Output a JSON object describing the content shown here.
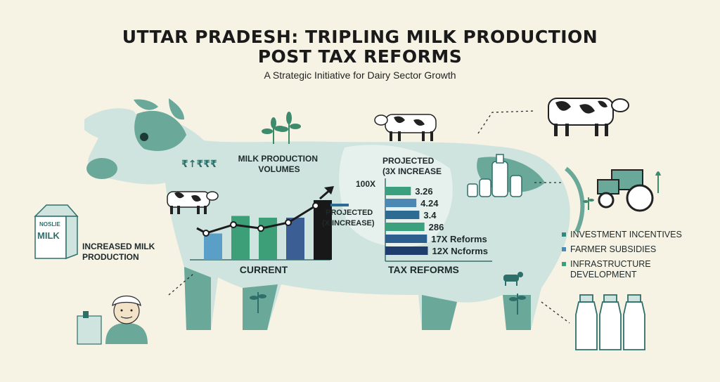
{
  "header": {
    "title_line1": "UTTAR PRADESH: TRIPLING MILK PRODUCTION",
    "title_line2": "POST TAX REFORMS",
    "subtitle": "A Strategic Initiative for Dairy Sector Growth"
  },
  "labels": {
    "increased_milk": "INCREASED MILK PRODUCTION",
    "carton_brand": "NOSLIE",
    "carton_product": "MILK",
    "icon_numbers": "₹↑₹₹₹",
    "projected_side": "PROJECTED (X INCREASE)",
    "hundred_x": "100X"
  },
  "legend": [
    {
      "label": "INVESTMENT INCENTIVES",
      "color": "#2f8a7c"
    },
    {
      "label": "FARMER SUBSIDIES",
      "color": "#4b88b4"
    },
    {
      "label": "INFRASTRUCTURE DEVELOPMENT",
      "color": "#3aa07e"
    }
  ],
  "colors": {
    "cow_body": "#cfe4de",
    "cow_spot": "#6aa89a",
    "teal_dark": "#2e6f6a",
    "green": "#3a9b76",
    "blue": "#4f8fbc",
    "navy": "#2d4f82",
    "black": "#181818"
  },
  "chart_data": [
    {
      "type": "bar",
      "title": "MILK PRODUCTION VOLUMES",
      "xlabel": "CURRENT",
      "values": [
        3,
        5,
        4.8,
        4.8,
        6.8
      ],
      "colors": [
        "#5a9fc7",
        "#3c9f78",
        "#3c9f78",
        "#3b5f94",
        "#181818"
      ],
      "trend_line": [
        2.4,
        4.0,
        3.3,
        4.4,
        7.6
      ],
      "ylim": [
        0,
        8
      ],
      "grid": false
    },
    {
      "type": "bar",
      "orientation": "horizontal",
      "title": "PROJECTED (3X INCREASE",
      "xlabel": "TAX REFORMS",
      "labels": [
        "3.26",
        "4.24",
        "3.4",
        "286",
        "17X Reforms",
        "12X Ncforms"
      ],
      "values": [
        0.6,
        0.73,
        0.8,
        0.92,
        0.98,
        1.0
      ],
      "colors": [
        "#3aa07e",
        "#4b88b4",
        "#2e6b93",
        "#3aa07e",
        "#2d5f8e",
        "#1f3c6e"
      ],
      "xlim": [
        0,
        1
      ],
      "grid": false
    }
  ]
}
